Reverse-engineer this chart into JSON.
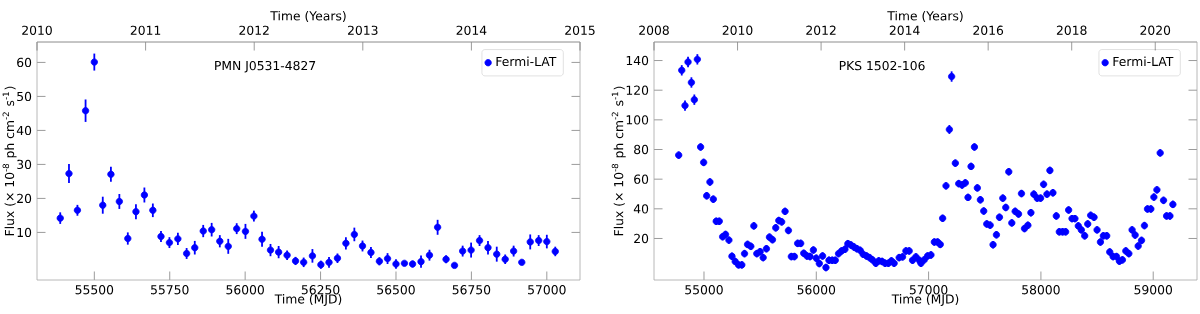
{
  "chart_data": [
    {
      "type": "scatter",
      "title": "PMN J0531-4827",
      "xlabel": "Time (MJD)",
      "x2label": "Time (Years)",
      "ylabel": "Flux (× 10$^{-8}$ ph cm$^{-2}$ s$^{-1}$)",
      "x": [
        55387,
        55416,
        55444,
        55471,
        55500,
        55528,
        55555,
        55583,
        55611,
        55638,
        55666,
        55694,
        55721,
        55749,
        55777,
        55806,
        55833,
        55861,
        55889,
        55916,
        55944,
        55972,
        56001,
        56029,
        56056,
        56084,
        56111,
        56139,
        56167,
        56194,
        56223,
        56251,
        56278,
        56306,
        56334,
        56362,
        56389,
        56417,
        56445,
        56472,
        56500,
        56528,
        56555,
        56583,
        56611,
        56638,
        56666,
        56694,
        56721,
        56749,
        56777,
        56805,
        56834,
        56862,
        56890,
        56917,
        56945,
        56973,
        57000,
        57028
      ],
      "series": [
        {
          "name": "Fermi-LAT",
          "color": "#0000ff",
          "values": [
            14.2,
            27.3,
            16.5,
            45.8,
            60.1,
            18.0,
            27.1,
            19.1,
            8.2,
            16.1,
            21.0,
            16.5,
            8.8,
            7.0,
            8.1,
            3.8,
            5.5,
            10.4,
            10.8,
            7.4,
            5.9,
            11.1,
            10.3,
            14.8,
            8.0,
            4.8,
            4.2,
            3.3,
            1.6,
            1.2,
            3.1,
            0.5,
            1.2,
            2.4,
            6.8,
            9.4,
            6.0,
            4.1,
            1.5,
            2.3,
            0.7,
            0.9,
            0.7,
            1.4,
            3.3,
            11.5,
            2.1,
            0.3,
            4.5,
            4.8,
            7.6,
            5.5,
            3.6,
            2.1,
            4.5,
            1.2,
            7.2,
            7.6,
            7.3,
            4.4
          ],
          "errors": [
            1.7,
            2.8,
            1.6,
            3.3,
            2.5,
            2.5,
            2.2,
            2.2,
            1.8,
            2.2,
            2.2,
            2.0,
            1.6,
            1.6,
            1.8,
            1.6,
            2.0,
            1.8,
            2.0,
            1.8,
            2.2,
            1.6,
            2.2,
            1.6,
            2.2,
            1.8,
            1.8,
            1.4,
            1.2,
            1.4,
            2.0,
            1.2,
            1.6,
            1.4,
            1.8,
            2.0,
            1.6,
            1.6,
            1.2,
            1.6,
            1.4,
            0.6,
            1.0,
            1.8,
            1.6,
            2.2,
            1.2,
            0.6,
            1.6,
            2.2,
            1.6,
            2.0,
            2.2,
            1.4,
            1.6,
            0.8,
            2.2,
            1.6,
            2.0,
            1.4
          ]
        }
      ],
      "xlim": [
        55310,
        57110
      ],
      "xticks": [
        55500,
        55750,
        56000,
        56250,
        56500,
        56750,
        57000
      ],
      "x2lim": [
        2010,
        2015
      ],
      "x2ticks": [
        2010,
        2011,
        2012,
        2013,
        2014,
        2015
      ],
      "ylim": [
        -4,
        66
      ],
      "yticks": [
        10,
        20,
        30,
        40,
        50,
        60
      ],
      "legend": "top right",
      "marker": "circle"
    },
    {
      "type": "scatter",
      "title": "PKS 1502-106",
      "xlabel": "Time (MJD)",
      "x2label": "Time (Years)",
      "ylabel": "Flux (× 10$^{-8}$ ph cm$^{-2}$ s$^{-1}$)",
      "x": [
        54775,
        54802,
        54831,
        54858,
        54888,
        54914,
        54941,
        54970,
        54997,
        55024,
        55053,
        55083,
        55109,
        55136,
        55166,
        55192,
        55222,
        55249,
        55278,
        55308,
        55337,
        55361,
        55388,
        55417,
        55444,
        55470,
        55500,
        55527,
        55556,
        55583,
        55610,
        55639,
        55666,
        55692,
        55722,
        55752,
        55778,
        55805,
        55834,
        55861,
        55888,
        55917,
        55944,
        55974,
        56000,
        56027,
        56056,
        56086,
        56113,
        56142,
        56169,
        56198,
        56225,
        56255,
        56281,
        56308,
        56335,
        56361,
        56391,
        56417,
        56447,
        56474,
        56500,
        56530,
        56556,
        56586,
        56613,
        56642,
        56669,
        56693,
        56738,
        56768,
        56798,
        56827,
        56857,
        56887,
        56917,
        56932,
        56961,
        56991,
        57021,
        57051,
        57080,
        57104,
        57125,
        57155,
        57185,
        57205,
        57238,
        57268,
        57298,
        57327,
        57351,
        57378,
        57408,
        57434,
        57461,
        57491,
        57518,
        57548,
        57574,
        57604,
        57631,
        57661,
        57687,
        57714,
        57741,
        57771,
        57801,
        57827,
        57854,
        57884,
        57911,
        57937,
        57967,
        57997,
        58024,
        58054,
        58080,
        58107,
        58137,
        58164,
        58193,
        58220,
        58247,
        58277,
        58303,
        58333,
        58360,
        58390,
        58417,
        58443,
        58473,
        58500,
        58530,
        58556,
        58586,
        58613,
        58643,
        58673,
        58699,
        58726,
        58756,
        58783,
        58812,
        58839,
        58866,
        58896,
        58922,
        58949,
        58979,
        59006,
        59033,
        59062,
        59092,
        59119,
        59149,
        59175
      ],
      "series": [
        {
          "name": "Fermi-LAT",
          "color": "#0000ff",
          "values": [
            76.2,
            133.4,
            109.6,
            139.0,
            125.2,
            113.6,
            140.8,
            81.7,
            71.3,
            48.8,
            58.1,
            46.5,
            31.6,
            31.6,
            21.2,
            22.7,
            18.9,
            8.0,
            4.5,
            2.2,
            2.2,
            9.8,
            16.0,
            14.7,
            28.5,
            9.8,
            11.1,
            7.1,
            13.1,
            20.9,
            19.2,
            27.2,
            32.1,
            31.2,
            38.3,
            25.4,
            7.8,
            7.8,
            16.7,
            16.7,
            10.0,
            8.2,
            7.8,
            12.2,
            6.7,
            3.1,
            8.2,
            0.4,
            5.3,
            5.3,
            5.3,
            9.8,
            11.6,
            12.7,
            16.5,
            15.6,
            14.3,
            13.1,
            12.0,
            9.4,
            8.2,
            7.1,
            5.6,
            3.3,
            4.9,
            4.5,
            3.3,
            3.3,
            4.9,
            3.3,
            7.1,
            7.6,
            11.6,
            11.6,
            5.3,
            7.6,
            5.3,
            3.3,
            5.6,
            8.2,
            8.9,
            17.6,
            17.6,
            16.0,
            33.6,
            55.5,
            93.5,
            129.2,
            70.8,
            57.0,
            56.1,
            57.5,
            47.7,
            68.6,
            81.7,
            54.1,
            46.1,
            38.5,
            29.8,
            29.0,
            15.8,
            22.5,
            34.3,
            47.2,
            40.9,
            65.0,
            30.5,
            38.3,
            36.5,
            50.3,
            26.7,
            28.9,
            37.4,
            49.9,
            47.2,
            47.2,
            56.5,
            49.9,
            65.9,
            50.8,
            35.2,
            24.5,
            24.5,
            24.5,
            39.2,
            33.4,
            33.4,
            28.5,
            25.8,
            21.8,
            29.8,
            35.6,
            34.3,
            25.8,
            17.6,
            21.8,
            21.8,
            10.9,
            7.8,
            7.8,
            4.7,
            5.6,
            11.6,
            9.8,
            25.8,
            22.3,
            14.9,
            18.7,
            28.7,
            39.9,
            39.9,
            47.9,
            52.8,
            77.7,
            45.7,
            35.2,
            35.2,
            43.0
          ],
          "errors": [
            2.5,
            3.5,
            3.5,
            3.5,
            3.5,
            3.5,
            3.5,
            2.5,
            2.5,
            2.5,
            2.5,
            2.5,
            2.5,
            2.5,
            2.5,
            2.5,
            2.5,
            2.5,
            2.5,
            2.5,
            2.5,
            2.5,
            2.5,
            2.5,
            2.5,
            2.5,
            2.5,
            2.5,
            2.5,
            2.5,
            2.5,
            2.5,
            2.5,
            2.5,
            2.5,
            2.5,
            2.5,
            2.5,
            2.5,
            2.5,
            2.5,
            2.5,
            2.5,
            2.5,
            2.5,
            2.5,
            2.5,
            2.5,
            2.5,
            2.5,
            2.5,
            2.5,
            2.5,
            2.5,
            2.5,
            2.5,
            2.5,
            2.5,
            2.5,
            2.5,
            2.5,
            2.5,
            2.5,
            2.5,
            2.5,
            2.5,
            2.5,
            2.5,
            2.5,
            2.5,
            2.5,
            2.5,
            2.5,
            2.5,
            2.5,
            2.5,
            2.5,
            2.5,
            2.5,
            2.5,
            2.5,
            2.5,
            2.5,
            2.5,
            2.5,
            2.5,
            3,
            3.5,
            2.5,
            2.5,
            2.5,
            2.5,
            2.5,
            2.5,
            2.5,
            2.5,
            2.5,
            2.5,
            2.5,
            2.5,
            2.5,
            2.5,
            2.5,
            2.5,
            2.5,
            2.5,
            2.5,
            2.5,
            2.5,
            2.5,
            2.5,
            2.5,
            2.5,
            2.5,
            2.5,
            2.5,
            2.5,
            2.5,
            2.5,
            2.5,
            2.5,
            2.5,
            2.5,
            2.5,
            2.5,
            2.5,
            2.5,
            2.5,
            2.5,
            2.5,
            2.5,
            2.5,
            2.5,
            2.5,
            2.5,
            2.5,
            2.5,
            2.5,
            2.5,
            2.5,
            2.5,
            2.5,
            2.5,
            2.5,
            2.5,
            2.5,
            2.5,
            2.5,
            2.5,
            2.5,
            2.5,
            2.5,
            2.5,
            2.5,
            2.5,
            2.5,
            2.5,
            2.5
          ]
        }
      ],
      "xlim": [
        54555,
        59390
      ],
      "xticks": [
        55000,
        56000,
        57000,
        58000,
        59000
      ],
      "x2lim": [
        2008,
        2021
      ],
      "x2ticks": [
        2008,
        2010,
        2012,
        2014,
        2016,
        2018,
        2020
      ],
      "ylim": [
        -8,
        152.5
      ],
      "yticks": [
        20,
        40,
        60,
        80,
        100,
        120,
        140
      ],
      "legend": "top right",
      "marker": "circle"
    }
  ]
}
